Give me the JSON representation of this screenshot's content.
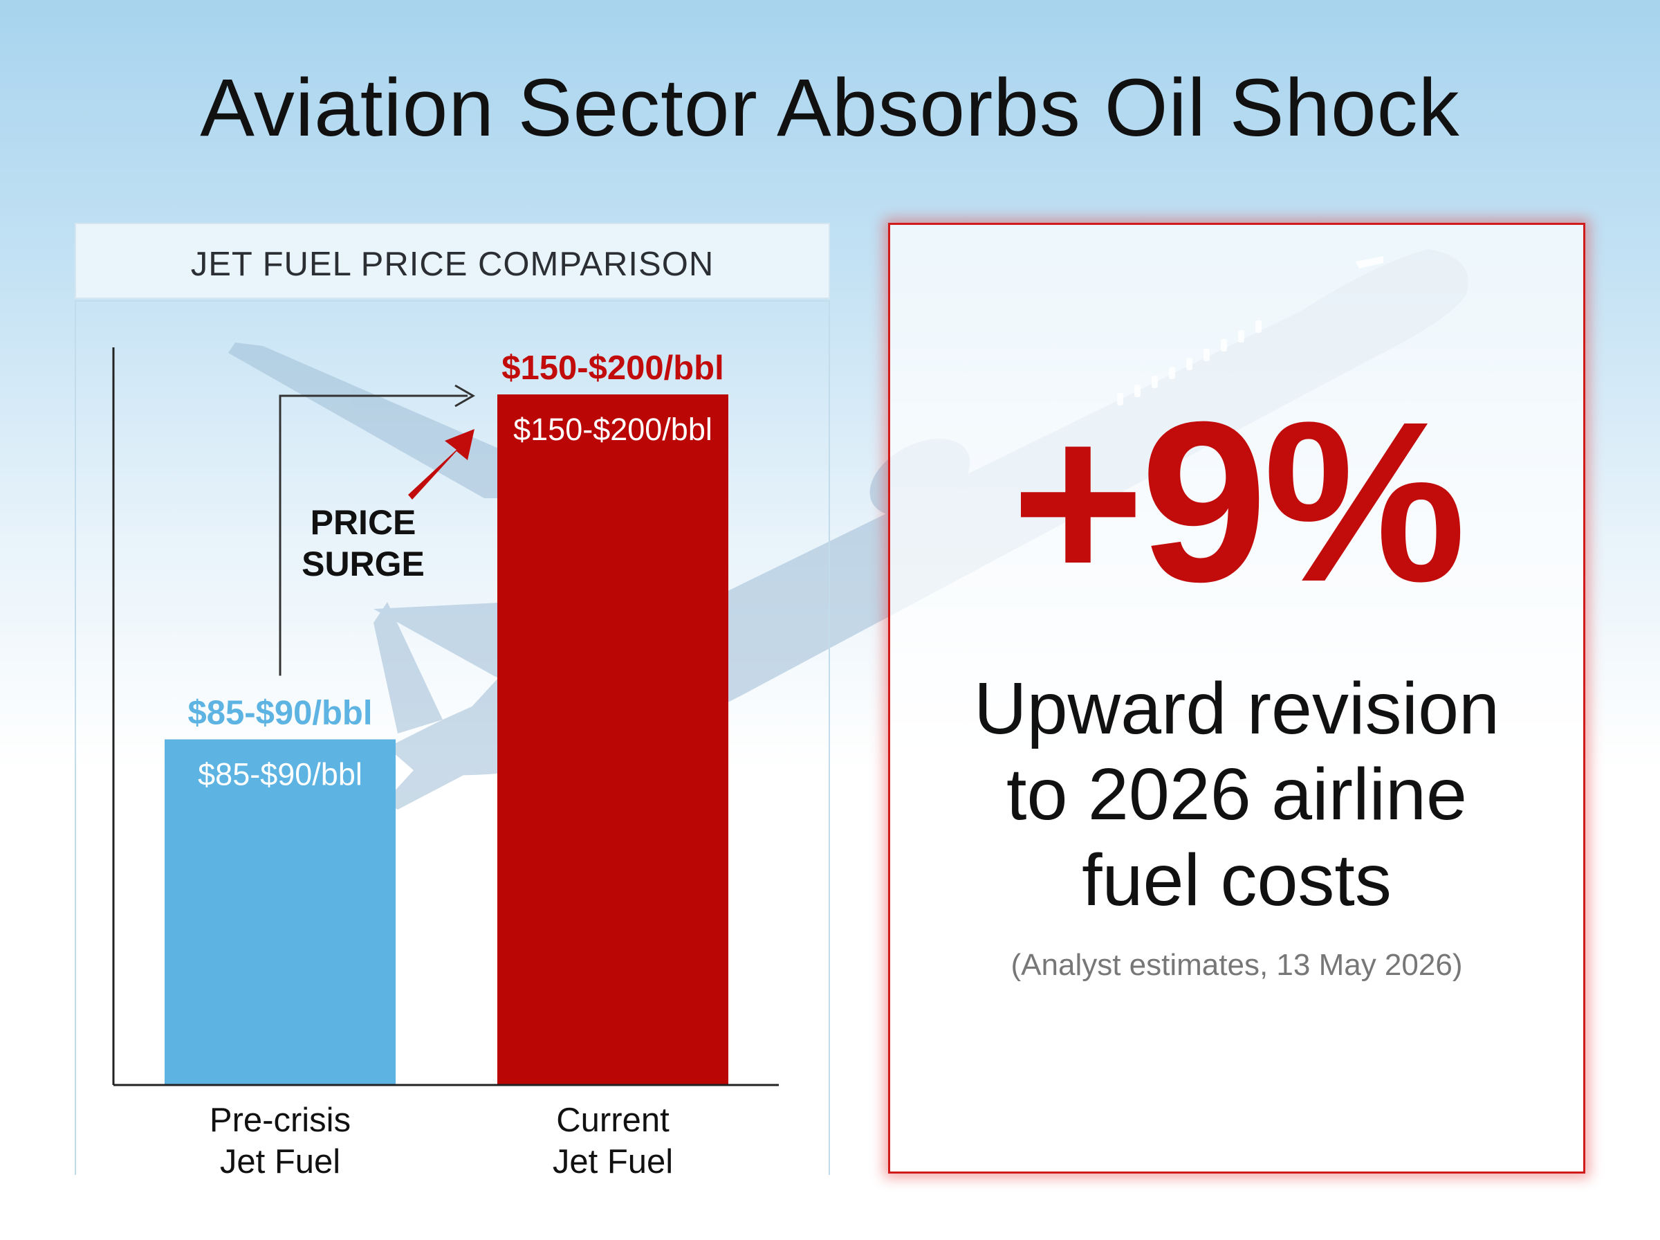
{
  "title": "Aviation Sector Absorbs Oil Shock",
  "panel": {
    "heading": "JET FUEL PRICE COMPARISON"
  },
  "chart_data": {
    "type": "bar",
    "categories": [
      "Pre-crisis\nJet Fuel",
      "Current\nJet Fuel"
    ],
    "category_lines": [
      [
        "Pre-crisis",
        "Jet Fuel"
      ],
      [
        "Current",
        "Jet Fuel"
      ]
    ],
    "values": [
      87.5,
      175
    ],
    "value_ranges": [
      [
        85,
        90
      ],
      [
        150,
        200
      ]
    ],
    "data_labels": [
      "$85-$90/bbl",
      "$150-$200/bbl"
    ],
    "bar_colors": [
      "#5db3e2",
      "#bb0606"
    ],
    "label_colors": [
      "#5db3e2",
      "#c20b0b"
    ],
    "annotation": {
      "lines": [
        "PRICE",
        "SURGE"
      ]
    },
    "grid": false,
    "axis_ticks": false
  },
  "stat": {
    "value": "+9%",
    "description_lines": [
      "Upward revision",
      "to 2026 airline",
      "fuel costs"
    ],
    "source": "(Analyst estimates, 13 May 2026)"
  },
  "colors": {
    "accent_red": "#c20b0b",
    "accent_blue": "#5db3e2",
    "plane": "#b7cfe2"
  }
}
